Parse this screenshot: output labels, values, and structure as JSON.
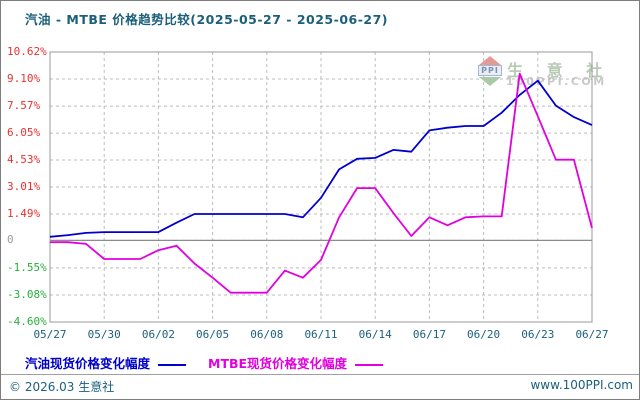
{
  "title": "汽油 - MTBE 价格趋势比较(2025-05-27 - 2025-06-27)",
  "watermark": {
    "logo_text": "PPI",
    "brand": "生 意 社",
    "domain": "100PPI.COM"
  },
  "legend": [
    {
      "label": "汽油现货价格变化幅度",
      "color": "#0000cc"
    },
    {
      "label": "MTBE现货价格变化幅度",
      "color": "#e000e0"
    }
  ],
  "footer": {
    "left": "© 2026.03 生意社",
    "right": "www.100PPI.com"
  },
  "chart_data": {
    "type": "line",
    "title": "汽油 - MTBE 价格趋势比较(2025-05-27 - 2025-06-27)",
    "ylim": [
      -4.6,
      10.62
    ],
    "grid": true,
    "zero_line": true,
    "legend_position": "bottom",
    "tick_colors": {
      "pos": "#e63232",
      "zero": "#9b9b9b",
      "neg": "#27ae3c"
    },
    "grid_color": "#bcbcbc",
    "border_color": "#999999",
    "zero_line_color": "#8c8c8c",
    "y_ticks": [
      {
        "label": "10.62%",
        "value": 10.62
      },
      {
        "label": "9.10%",
        "value": 9.1
      },
      {
        "label": "7.57%",
        "value": 7.57
      },
      {
        "label": "6.05%",
        "value": 6.05
      },
      {
        "label": "4.53%",
        "value": 4.53
      },
      {
        "label": "3.01%",
        "value": 3.01
      },
      {
        "label": "1.49%",
        "value": 1.49
      },
      {
        "label": "0",
        "value": 0
      },
      {
        "label": "-1.55%",
        "value": -1.55
      },
      {
        "label": "-3.08%",
        "value": -3.08
      },
      {
        "label": "-4.60%",
        "value": -4.6
      }
    ],
    "x_ticks": [
      {
        "label": "05/27",
        "index": 0
      },
      {
        "label": "05/30",
        "index": 3
      },
      {
        "label": "06/02",
        "index": 6
      },
      {
        "label": "06/05",
        "index": 9
      },
      {
        "label": "06/08",
        "index": 12
      },
      {
        "label": "06/11",
        "index": 15
      },
      {
        "label": "06/14",
        "index": 18
      },
      {
        "label": "06/17",
        "index": 21
      },
      {
        "label": "06/20",
        "index": 24
      },
      {
        "label": "06/23",
        "index": 27
      },
      {
        "label": "06/27",
        "index": 30
      }
    ],
    "dates": [
      "05/27",
      "05/28",
      "05/29",
      "05/30",
      "05/31",
      "06/01",
      "06/02",
      "06/03",
      "06/04",
      "06/05",
      "06/06",
      "06/07",
      "06/08",
      "06/09",
      "06/10",
      "06/11",
      "06/12",
      "06/13",
      "06/14",
      "06/15",
      "06/16",
      "06/17",
      "06/18",
      "06/19",
      "06/20",
      "06/21",
      "06/22",
      "06/23",
      "06/24",
      "06/25",
      "06/27"
    ],
    "series": [
      {
        "name": "汽油现货价格变化幅度",
        "color": "#0000cc",
        "values": [
          0.2,
          0.3,
          0.42,
          0.47,
          0.47,
          0.47,
          0.47,
          1.0,
          1.49,
          1.49,
          1.49,
          1.49,
          1.49,
          1.49,
          1.3,
          2.4,
          4.0,
          4.6,
          4.65,
          5.1,
          5.0,
          6.2,
          6.35,
          6.45,
          6.45,
          7.2,
          8.2,
          9.0,
          7.6,
          6.95,
          6.5
        ]
      },
      {
        "name": "MTBE现货价格变化幅度",
        "color": "#e000e0",
        "values": [
          -0.1,
          -0.1,
          -0.2,
          -1.05,
          -1.05,
          -1.05,
          -0.55,
          -0.3,
          -1.3,
          -2.1,
          -2.95,
          -2.95,
          -2.95,
          -1.7,
          -2.1,
          -1.1,
          1.3,
          2.95,
          2.95,
          1.55,
          0.25,
          1.3,
          0.85,
          1.3,
          1.35,
          1.35,
          9.4,
          7.0,
          4.55,
          4.55,
          0.7
        ]
      }
    ]
  }
}
